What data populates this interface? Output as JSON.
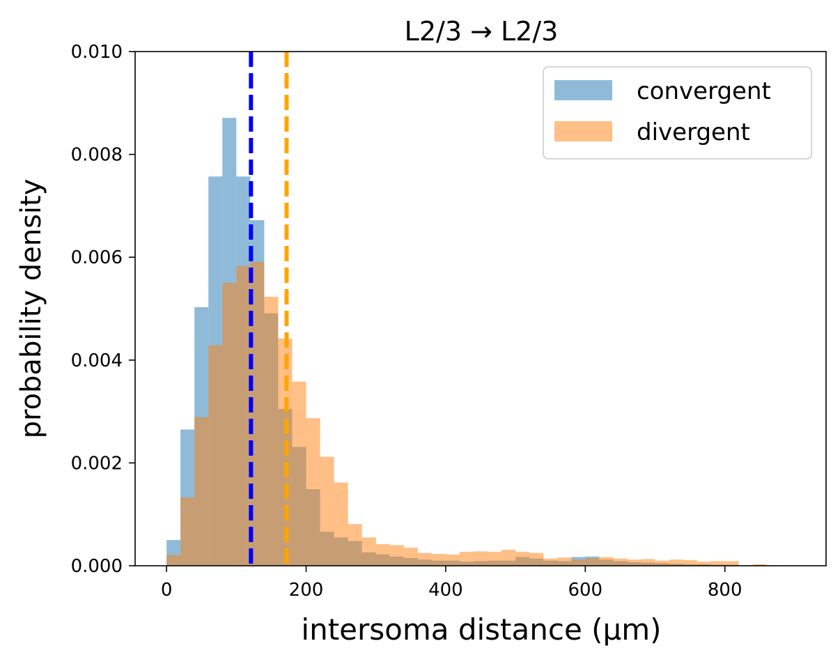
{
  "chart_data": {
    "type": "bar",
    "title": "L2/3 → L2/3",
    "xlabel": "intersoma distance (μm)",
    "ylabel": "probability density",
    "xlim": [
      -45,
      945
    ],
    "ylim": [
      0,
      0.01
    ],
    "x_ticks": [
      0,
      200,
      400,
      600,
      800
    ],
    "y_ticks": [
      0.0,
      0.002,
      0.004,
      0.006,
      0.008,
      0.01
    ],
    "x_tick_labels": [
      "0",
      "200",
      "400",
      "600",
      "800"
    ],
    "y_tick_labels": [
      "0.000",
      "0.002",
      "0.004",
      "0.006",
      "0.008",
      "0.010"
    ],
    "legend_position": "top-right",
    "grid": false,
    "series": [
      {
        "name": "convergent",
        "color": "#1f77b4",
        "alpha": 0.5,
        "bin_edges": [
          0,
          20,
          40,
          60,
          80,
          100,
          120,
          140,
          160,
          180,
          200,
          220,
          240,
          260,
          280,
          300,
          320,
          340,
          360,
          380,
          400,
          420,
          440,
          460,
          480,
          500,
          520,
          540,
          560,
          580,
          600,
          620,
          640,
          660,
          680,
          700,
          720,
          740,
          760,
          780,
          800,
          820,
          840,
          860,
          880
        ],
        "values": [
          0.0005,
          0.00265,
          0.00503,
          0.00757,
          0.00871,
          0.00757,
          0.00672,
          0.00491,
          0.00305,
          0.00231,
          0.00149,
          0.00066,
          0.00055,
          0.00048,
          0.00026,
          0.00022,
          0.00018,
          0.00015,
          0.00012,
          0.0001,
          0.0001,
          8e-05,
          9e-05,
          0.0001,
          0.0001,
          0.00017,
          0.00014,
          0.0001,
          9e-05,
          0.00017,
          0.00018,
          0.00012,
          9e-05,
          7e-05,
          6e-05,
          5e-05,
          4e-05,
          3e-05,
          3e-05,
          2e-05,
          2e-05,
          1e-05,
          1e-05,
          0.0
        ]
      },
      {
        "name": "divergent",
        "color": "#ff7f0e",
        "alpha": 0.5,
        "bin_edges": [
          0,
          20,
          40,
          60,
          80,
          100,
          120,
          140,
          160,
          180,
          200,
          220,
          240,
          260,
          280,
          300,
          320,
          340,
          360,
          380,
          400,
          420,
          440,
          460,
          480,
          500,
          520,
          540,
          560,
          580,
          600,
          620,
          640,
          660,
          680,
          700,
          720,
          740,
          760,
          780,
          800,
          820,
          840,
          860,
          880
        ],
        "values": [
          0.00021,
          0.00133,
          0.00289,
          0.00429,
          0.0055,
          0.00583,
          0.00591,
          0.00523,
          0.00442,
          0.00358,
          0.00287,
          0.00212,
          0.00162,
          0.00081,
          0.00055,
          0.00042,
          0.0004,
          0.00035,
          0.00025,
          0.00023,
          0.00022,
          0.00027,
          0.00028,
          0.00027,
          0.00031,
          0.00027,
          0.00025,
          0.00014,
          0.00016,
          0.00012,
          0.00015,
          0.00017,
          0.00014,
          0.00012,
          0.00013,
          0.0001,
          0.00012,
          0.00011,
          8e-05,
          9e-05,
          9e-05,
          0.0,
          3e-05,
          1e-05
        ]
      }
    ],
    "vlines": [
      {
        "x": 121,
        "color": "#0000ff",
        "style": "dashed"
      },
      {
        "x": 172,
        "color": "#ffa500",
        "style": "dashed"
      }
    ]
  }
}
